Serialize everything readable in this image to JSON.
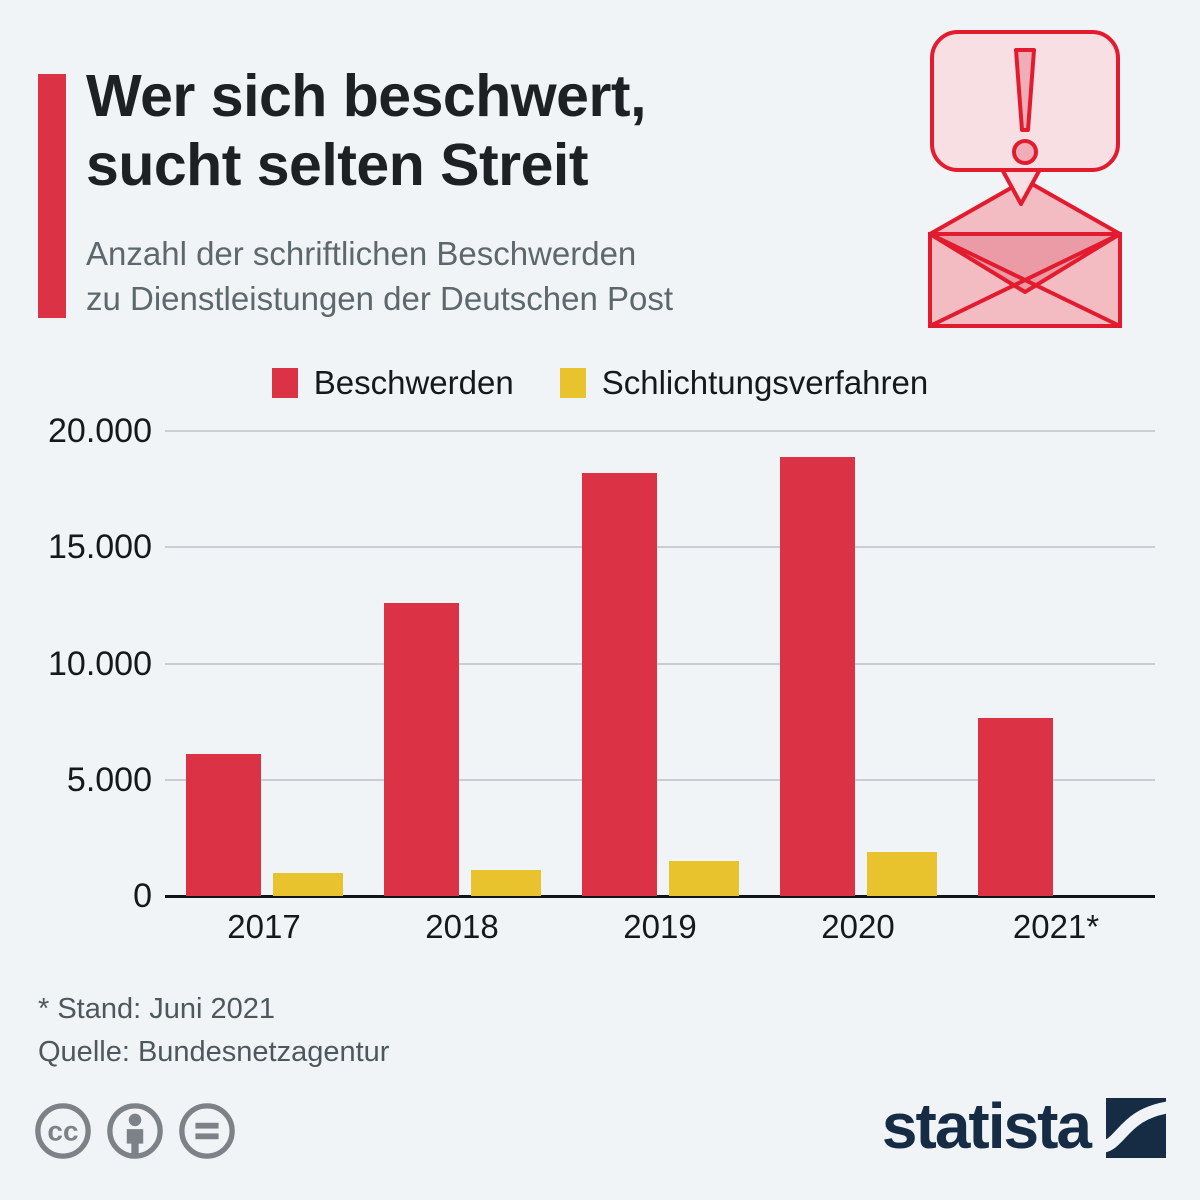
{
  "header": {
    "title": "Wer sich beschwert,\nsucht selten Streit",
    "subtitle": "Anzahl der schriftlichen Beschwerden\nzu Dienstleistungen der Deutschen Post"
  },
  "footer": {
    "footnote": "* Stand: Juni 2021",
    "source": "Quelle: Bundesnetzagentur",
    "brand": "statista"
  },
  "icons": {
    "hero": "complaint-letter-icon (speech bubble with exclamation mark over crossed envelope)",
    "license": [
      "cc-icon",
      "attribution-person-icon",
      "no-derivatives-equals-icon"
    ],
    "brand_mark": "statista-swoosh-icon"
  },
  "colors": {
    "background": "#f0f4f7",
    "accent_red": "#dc3246",
    "bar_red": "#dc3246",
    "bar_yellow": "#e9c32d",
    "gridline": "#c9ced3",
    "axis": "#111416",
    "icon_red": "#e31b2f",
    "brand_navy": "#152c44",
    "license_gray": "#7c8287"
  },
  "chart_data": {
    "type": "bar",
    "categories": [
      "2017",
      "2018",
      "2019",
      "2020",
      "2021*"
    ],
    "series": [
      {
        "name": "Beschwerden",
        "color": "#dc3246",
        "values": [
          6100,
          12600,
          18200,
          18900,
          7650
        ]
      },
      {
        "name": "Schlichtungsverfahren",
        "color": "#e9c32d",
        "values": [
          1000,
          1100,
          1500,
          1900,
          null
        ]
      }
    ],
    "title": "Anzahl der schriftlichen Beschwerden zu Dienstleistungen der Deutschen Post",
    "xlabel": "",
    "ylabel": "",
    "ylim": [
      0,
      20000
    ],
    "yticks": [
      {
        "value": 20000,
        "label": "20.000"
      },
      {
        "value": 15000,
        "label": "15.000"
      },
      {
        "value": 10000,
        "label": "10.000"
      },
      {
        "value": 5000,
        "label": "5.000"
      },
      {
        "value": 0,
        "label": "0"
      }
    ],
    "grid": true,
    "legend_position": "top-center"
  }
}
